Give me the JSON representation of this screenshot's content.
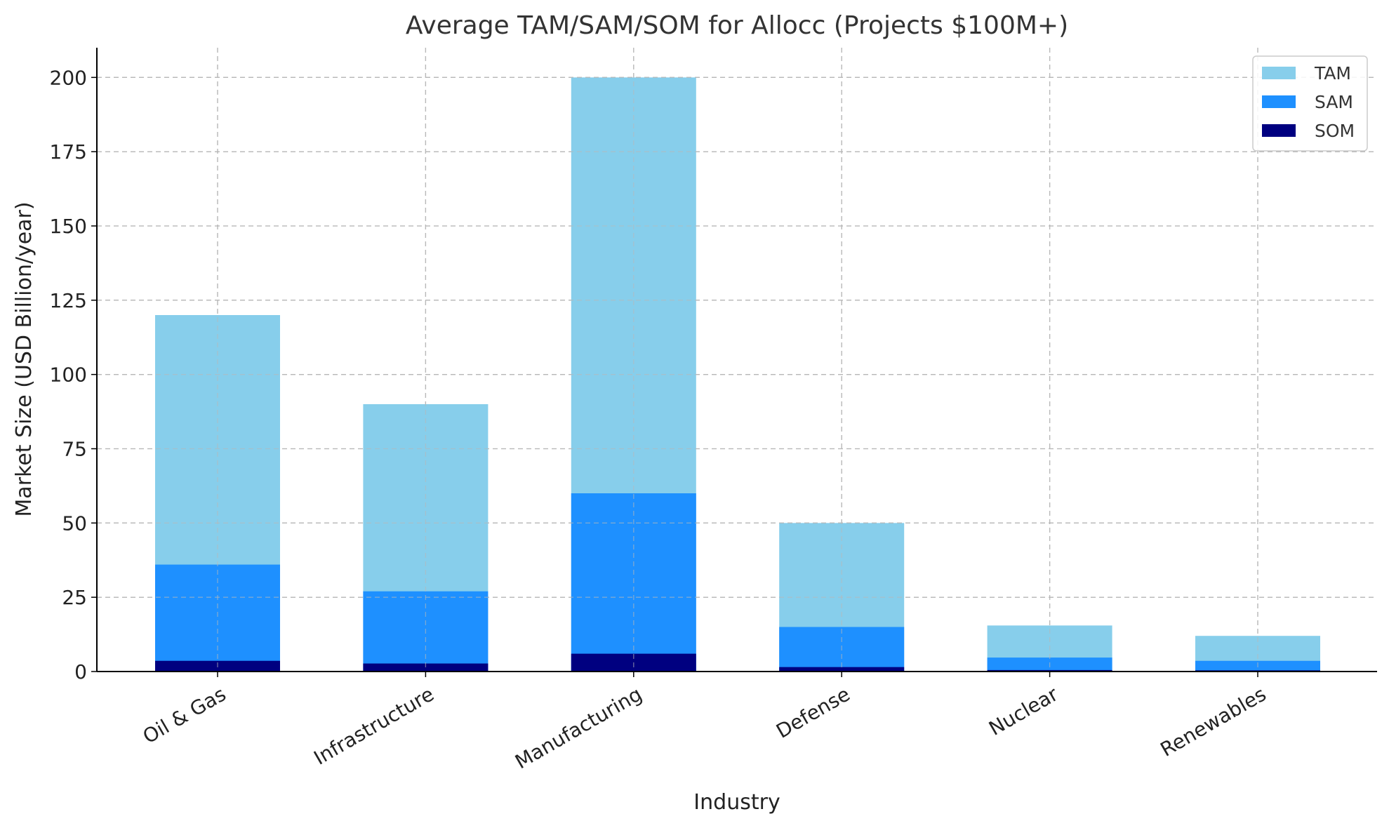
{
  "chart_data": {
    "type": "bar",
    "stacked": "overlay",
    "title": "Average TAM/SAM/SOM for Allocc (Projects $100M+)",
    "xlabel": "Industry",
    "ylabel": "Market Size (USD Billion/year)",
    "categories": [
      "Oil & Gas",
      "Infrastructure",
      "Manufacturing",
      "Defense",
      "Nuclear",
      "Renewables"
    ],
    "ylim": [
      0,
      210
    ],
    "yticks": [
      0,
      25,
      50,
      75,
      100,
      125,
      150,
      175,
      200
    ],
    "grid": true,
    "legend_position": "top-right",
    "series": [
      {
        "name": "TAM",
        "color": "#87CEEB",
        "values": [
          120,
          90,
          200,
          50,
          15.5,
          12
        ]
      },
      {
        "name": "SAM",
        "color": "#1E90FF",
        "values": [
          36,
          27,
          60,
          15,
          4.7,
          3.6
        ]
      },
      {
        "name": "SOM",
        "color": "#000080",
        "values": [
          3.6,
          2.7,
          6,
          1.5,
          0.5,
          0.4
        ]
      }
    ]
  }
}
